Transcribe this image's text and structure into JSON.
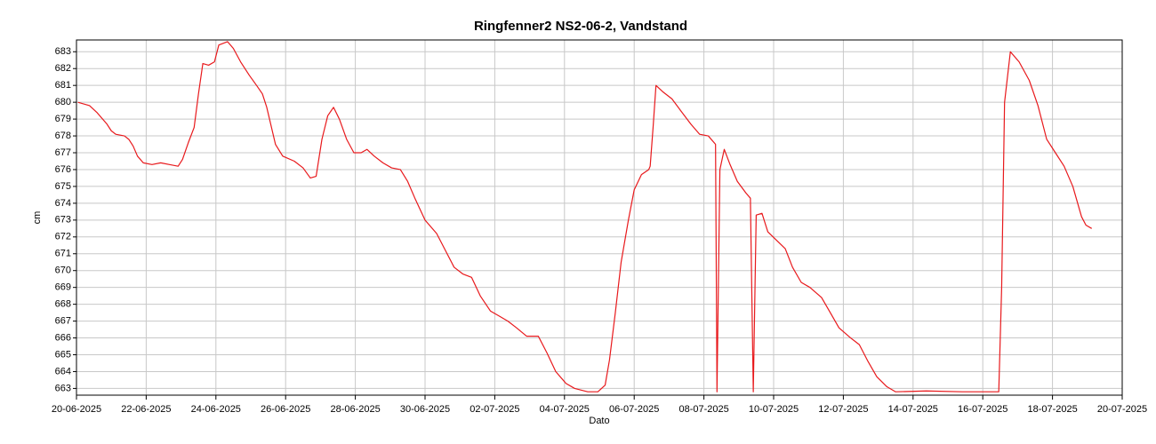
{
  "chart_data": {
    "type": "line",
    "title": "Ringfenner2 NS2-06-2, Vandstand",
    "xlabel": "Dato",
    "ylabel": "cm",
    "grid": true,
    "xlim": [
      "2025-06-20",
      "2025-07-20"
    ],
    "ylim": [
      662.6,
      683.7
    ],
    "yticks": [
      663,
      664,
      665,
      666,
      667,
      668,
      669,
      670,
      671,
      672,
      673,
      674,
      675,
      676,
      677,
      678,
      679,
      680,
      681,
      682,
      683
    ],
    "xticks": [
      {
        "value": "2025-06-20",
        "label": "20-06-2025"
      },
      {
        "value": "2025-06-22",
        "label": "22-06-2025"
      },
      {
        "value": "2025-06-24",
        "label": "24-06-2025"
      },
      {
        "value": "2025-06-26",
        "label": "26-06-2025"
      },
      {
        "value": "2025-06-28",
        "label": "28-06-2025"
      },
      {
        "value": "2025-06-30",
        "label": "30-06-2025"
      },
      {
        "value": "2025-07-02",
        "label": "02-07-2025"
      },
      {
        "value": "2025-07-04",
        "label": "04-07-2025"
      },
      {
        "value": "2025-07-06",
        "label": "06-07-2025"
      },
      {
        "value": "2025-07-08",
        "label": "08-07-2025"
      },
      {
        "value": "2025-07-10",
        "label": "10-07-2025"
      },
      {
        "value": "2025-07-12",
        "label": "12-07-2025"
      },
      {
        "value": "2025-07-14",
        "label": "14-07-2025"
      },
      {
        "value": "2025-07-16",
        "label": "16-07-2025"
      },
      {
        "value": "2025-07-18",
        "label": "18-07-2025"
      },
      {
        "value": "2025-07-20",
        "label": "20-07-2025"
      }
    ],
    "x": [
      "2025-06-20 01:00",
      "2025-06-20 09:00",
      "2025-06-20 14:00",
      "2025-06-20 21:00",
      "2025-06-21 00:00",
      "2025-06-21 03:00",
      "2025-06-21 09:00",
      "2025-06-21 12:00",
      "2025-06-21 15:00",
      "2025-06-21 18:00",
      "2025-06-21 22:00",
      "2025-06-22 04:00",
      "2025-06-22 10:00",
      "2025-06-22 16:00",
      "2025-06-22 22:00",
      "2025-06-23 01:00",
      "2025-06-23 05:00",
      "2025-06-23 09:00",
      "2025-06-23 12:00",
      "2025-06-23 15:00",
      "2025-06-23 19:00",
      "2025-06-23 23:00",
      "2025-06-24 02:00",
      "2025-06-24 08:00",
      "2025-06-24 12:00",
      "2025-06-24 17:00",
      "2025-06-24 23:00",
      "2025-06-25 04:00",
      "2025-06-25 08:00",
      "2025-06-25 11:00",
      "2025-06-25 17:00",
      "2025-06-25 22:00",
      "2025-06-26 06:00",
      "2025-06-26 12:00",
      "2025-06-26 17:00",
      "2025-06-26 21:00",
      "2025-06-27 01:00",
      "2025-06-27 05:00",
      "2025-06-27 09:00",
      "2025-06-27 13:00",
      "2025-06-27 18:00",
      "2025-06-27 23:00",
      "2025-06-28 04:00",
      "2025-06-28 08:00",
      "2025-06-28 13:00",
      "2025-06-28 19:00",
      "2025-06-29 01:00",
      "2025-06-29 07:00",
      "2025-06-29 12:00",
      "2025-06-29 17:00",
      "2025-06-30 00:00",
      "2025-06-30 08:00",
      "2025-06-30 14:00",
      "2025-06-30 20:00",
      "2025-07-01 02:00",
      "2025-07-01 08:00",
      "2025-07-01 14:00",
      "2025-07-01 21:00",
      "2025-07-02 03:00",
      "2025-07-02 09:00",
      "2025-07-02 15:00",
      "2025-07-02 22:00",
      "2025-07-03 06:00",
      "2025-07-03 12:00",
      "2025-07-03 18:00",
      "2025-07-04 01:00",
      "2025-07-04 07:00",
      "2025-07-04 16:00",
      "2025-07-04 23:00",
      "2025-07-05 04:00",
      "2025-07-05 07:00",
      "2025-07-05 11:00",
      "2025-07-05 15:00",
      "2025-07-05 20:00",
      "2025-07-06 00:00",
      "2025-07-06 05:00",
      "2025-07-06 10:00",
      "2025-07-06 11:00",
      "2025-07-06 13:00",
      "2025-07-06 15:00",
      "2025-07-06 20:00",
      "2025-07-07 02:00",
      "2025-07-07 08:00",
      "2025-07-07 15:00",
      "2025-07-07 21:00",
      "2025-07-08 03:00",
      "2025-07-08 08:00",
      "2025-07-08 09:00",
      "2025-07-08 11:00",
      "2025-07-08 14:00",
      "2025-07-08 18:00",
      "2025-07-08 23:00",
      "2025-07-09 05:00",
      "2025-07-09 08:00",
      "2025-07-09 10:00",
      "2025-07-09 12:00",
      "2025-07-09 16:00",
      "2025-07-09 20:00",
      "2025-07-10 02:00",
      "2025-07-10 08:00",
      "2025-07-10 13:00",
      "2025-07-10 19:00",
      "2025-07-11 01:00",
      "2025-07-11 09:00",
      "2025-07-11 15:00",
      "2025-07-11 21:00",
      "2025-07-12 05:00",
      "2025-07-12 11:00",
      "2025-07-12 17:00",
      "2025-07-12 23:00",
      "2025-07-13 06:00",
      "2025-07-13 12:00",
      "2025-07-14 09:00",
      "2025-07-15 10:00",
      "2025-07-16 11:00",
      "2025-07-16 13:00",
      "2025-07-16 15:00",
      "2025-07-16 19:00",
      "2025-07-17 01:00",
      "2025-07-17 08:00",
      "2025-07-17 14:00",
      "2025-07-17 20:00",
      "2025-07-18 02:00",
      "2025-07-18 08:00",
      "2025-07-18 14:00",
      "2025-07-18 20:00",
      "2025-07-18 23:00",
      "2025-07-19 03:00"
    ],
    "series": [
      {
        "name": "Vandstand",
        "color": "#e8191c",
        "values": [
          680.0,
          679.8,
          679.4,
          678.7,
          678.3,
          678.1,
          678.0,
          677.8,
          677.4,
          676.8,
          676.4,
          676.3,
          676.4,
          676.3,
          676.2,
          676.6,
          677.6,
          678.5,
          680.5,
          682.3,
          682.2,
          682.4,
          683.4,
          683.6,
          683.2,
          682.4,
          681.6,
          681.0,
          680.5,
          679.7,
          677.5,
          676.8,
          676.5,
          676.1,
          675.5,
          675.6,
          677.8,
          679.2,
          679.7,
          679.0,
          677.8,
          677.0,
          677.0,
          677.2,
          676.8,
          676.4,
          676.1,
          676.0,
          675.3,
          674.3,
          673.0,
          672.2,
          671.2,
          670.2,
          669.8,
          669.6,
          668.5,
          667.6,
          667.3,
          667.0,
          666.6,
          666.1,
          666.1,
          665.1,
          664.0,
          663.3,
          663.0,
          662.8,
          662.8,
          663.2,
          664.7,
          667.5,
          670.5,
          673.0,
          674.8,
          675.7,
          676.0,
          676.2,
          678.5,
          681.0,
          680.6,
          680.2,
          679.5,
          678.7,
          678.1,
          678.0,
          677.5,
          662.8,
          676.0,
          677.2,
          676.3,
          675.3,
          674.6,
          674.3,
          662.8,
          673.3,
          673.4,
          672.3,
          671.8,
          671.3,
          670.2,
          669.3,
          669.0,
          668.4,
          667.5,
          666.6,
          666.0,
          665.6,
          664.6,
          663.7,
          663.1,
          662.8,
          662.85,
          662.8,
          662.8,
          669.0,
          680.0,
          683.0,
          682.4,
          681.3,
          679.8,
          677.8,
          677.0,
          676.2,
          675.0,
          673.2,
          672.7,
          672.5
        ]
      }
    ]
  }
}
